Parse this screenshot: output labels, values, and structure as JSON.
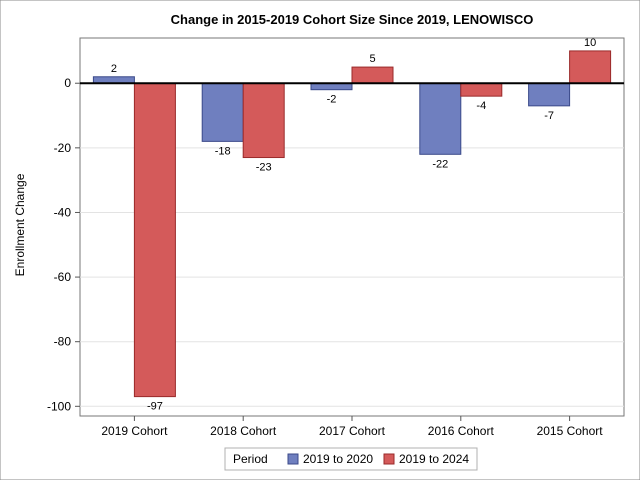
{
  "chart_data": {
    "type": "bar",
    "title": "Change in 2015-2019 Cohort Size Since 2019, LENOWISCO",
    "ylabel": "Enrollment Change",
    "xlabel": "",
    "categories": [
      "2019 Cohort",
      "2018 Cohort",
      "2017 Cohort",
      "2016 Cohort",
      "2015 Cohort"
    ],
    "series": [
      {
        "name": "2019 to 2020",
        "values": [
          2,
          -18,
          -2,
          -22,
          -7
        ],
        "color": "#6f7fbf",
        "stroke": "#3b4a8a"
      },
      {
        "name": "2019 to 2024",
        "values": [
          -97,
          -23,
          5,
          -4,
          10
        ],
        "color": "#d45a5a",
        "stroke": "#9a2a2a"
      }
    ],
    "ylim": [
      -103,
      14
    ],
    "yticks": [
      0,
      -20,
      -40,
      -60,
      -80,
      -100
    ],
    "grid": true,
    "legend": {
      "title": "Period",
      "placement": "bottom"
    }
  }
}
